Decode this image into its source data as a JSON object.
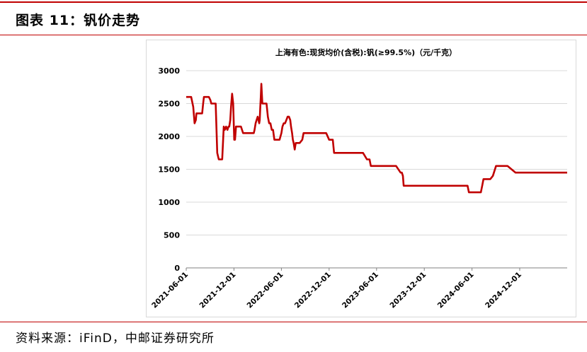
{
  "figure": {
    "title": "图表 11：钒价走势",
    "source": "资料来源：iFinD，中邮证券研究所"
  },
  "chart_data": {
    "type": "line",
    "title": "上海有色:现货均价(含税):钒(≥99.5%)（元/千克）",
    "xlabel": "",
    "ylabel": "",
    "ylim": [
      0,
      3000
    ],
    "yticks": [
      0,
      500,
      1000,
      1500,
      2000,
      2500,
      3000
    ],
    "xlim": [
      "2021-06-01",
      "2025-06-01"
    ],
    "xtick_labels": [
      "2021-06-01",
      "2021-12-01",
      "2022-06-01",
      "2022-12-01",
      "2023-06-01",
      "2023-12-01",
      "2024-06-01",
      "2024-12-01"
    ],
    "grid": true,
    "legend": "none",
    "line_color": "#c00000",
    "series": [
      {
        "name": "",
        "x": [
          "2021-06-01",
          "2021-06-20",
          "2021-06-28",
          "2021-07-03",
          "2021-07-08",
          "2021-07-10",
          "2021-07-20",
          "2021-07-27",
          "2021-08-01",
          "2021-08-05",
          "2021-08-08",
          "2021-08-20",
          "2021-08-27",
          "2021-09-02",
          "2021-09-05",
          "2021-09-12",
          "2021-09-22",
          "2021-09-28",
          "2021-10-01",
          "2021-10-04",
          "2021-10-08",
          "2021-10-13",
          "2021-10-17",
          "2021-10-20",
          "2021-10-23",
          "2021-10-27",
          "2021-11-01",
          "2021-11-06",
          "2021-11-10",
          "2021-11-13",
          "2021-11-17",
          "2021-11-20",
          "2021-11-24",
          "2021-11-28",
          "2021-12-02",
          "2021-12-05",
          "2021-12-09",
          "2021-12-13",
          "2021-12-20",
          "2021-12-28",
          "2022-01-05",
          "2022-01-15",
          "2022-01-25",
          "2022-02-05",
          "2022-02-15",
          "2022-02-18",
          "2022-02-22",
          "2022-02-26",
          "2022-03-02",
          "2022-03-08",
          "2022-03-10",
          "2022-03-12",
          "2022-03-14",
          "2022-03-16",
          "2022-03-20",
          "2022-03-30",
          "2022-04-05",
          "2022-04-10",
          "2022-04-15",
          "2022-04-20",
          "2022-04-25",
          "2022-04-30",
          "2022-05-05",
          "2022-05-15",
          "2022-05-20",
          "2022-05-25",
          "2022-06-01",
          "2022-06-05",
          "2022-06-10",
          "2022-06-15",
          "2022-06-20",
          "2022-06-25",
          "2022-06-30",
          "2022-07-05",
          "2022-07-08",
          "2022-07-12",
          "2022-07-15",
          "2022-07-18",
          "2022-07-22",
          "2022-07-26",
          "2022-07-28",
          "2022-08-01",
          "2022-08-10",
          "2022-08-20",
          "2022-08-25",
          "2022-09-15",
          "2022-10-01",
          "2022-11-01",
          "2022-11-20",
          "2022-12-01",
          "2022-12-05",
          "2022-12-15",
          "2022-12-20",
          "2023-04-10",
          "2023-04-25",
          "2023-05-05",
          "2023-05-10",
          "2023-08-15",
          "2023-09-01",
          "2023-09-06",
          "2023-09-10",
          "2023-09-13",
          "2024-05-15",
          "2024-05-20",
          "2024-07-01",
          "2024-07-05",
          "2024-07-10",
          "2024-07-15",
          "2024-08-10",
          "2024-08-20",
          "2024-09-01",
          "2024-10-10",
          "2024-10-15",
          "2024-11-15",
          "2024-12-01",
          "2025-06-01"
        ],
        "values": [
          2600,
          2600,
          2450,
          2200,
          2250,
          2350,
          2350,
          2350,
          2350,
          2500,
          2600,
          2600,
          2600,
          2550,
          2500,
          2500,
          2500,
          1750,
          1700,
          1650,
          1650,
          1650,
          1650,
          1900,
          2150,
          2100,
          2150,
          2100,
          2150,
          2150,
          2250,
          2450,
          2650,
          2500,
          1950,
          1950,
          2150,
          2150,
          2150,
          2150,
          2050,
          2050,
          2050,
          2050,
          2050,
          2100,
          2200,
          2250,
          2300,
          2200,
          2250,
          2450,
          2600,
          2800,
          2500,
          2500,
          2500,
          2300,
          2200,
          2200,
          2100,
          2100,
          1950,
          1950,
          1950,
          1950,
          2050,
          2150,
          2200,
          2200,
          2250,
          2300,
          2300,
          2250,
          2150,
          2050,
          1950,
          1900,
          1800,
          1900,
          1900,
          1900,
          1900,
          1950,
          2050,
          2050,
          2050,
          2050,
          2050,
          1950,
          1950,
          1950,
          1750,
          1750,
          1650,
          1650,
          1550,
          1550,
          1450,
          1450,
          1400,
          1250,
          1250,
          1150,
          1150,
          1150,
          1250,
          1350,
          1350,
          1400,
          1550,
          1550,
          1550,
          1450,
          1450,
          1450
        ]
      }
    ]
  }
}
